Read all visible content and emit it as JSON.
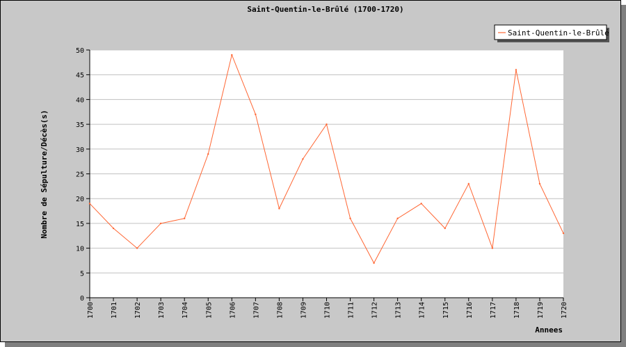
{
  "chart_data": {
    "type": "line",
    "title": "Saint-Quentin-le-Brûlé (1700-1720)",
    "xlabel": "Annees",
    "ylabel": "Nombre de Sépulture/Décès(s)",
    "x": [
      "1700",
      "1701",
      "1702",
      "1703",
      "1704",
      "1705",
      "1706",
      "1707",
      "1708",
      "1709",
      "1710",
      "1711",
      "1712",
      "1713",
      "1714",
      "1715",
      "1716",
      "1717",
      "1718",
      "1719",
      "1720"
    ],
    "ylim": [
      0,
      50
    ],
    "yticks": [
      0,
      5,
      10,
      15,
      20,
      25,
      30,
      35,
      40,
      45,
      50
    ],
    "grid": true,
    "legend_position": "top-right",
    "series": [
      {
        "name": "Saint-Quentin-le-Brûlé",
        "color": "#ff6633",
        "values": [
          19,
          14,
          10,
          15,
          16,
          29,
          49,
          37,
          18,
          28,
          35,
          16,
          7,
          16,
          19,
          14,
          23,
          10,
          46,
          23,
          13
        ]
      }
    ]
  }
}
